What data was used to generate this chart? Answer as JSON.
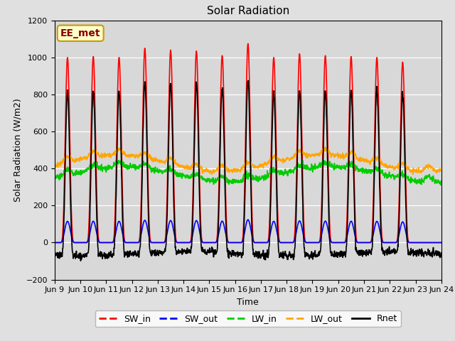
{
  "title": "Solar Radiation",
  "xlabel": "Time",
  "ylabel": "Solar Radiation (W/m2)",
  "ylim": [
    -200,
    1200
  ],
  "yticks": [
    -200,
    0,
    200,
    400,
    600,
    800,
    1000,
    1200
  ],
  "start_day": 9,
  "end_day": 24,
  "n_days": 15,
  "dt_hours": 0.25,
  "SW_in_color": "red",
  "SW_out_color": "blue",
  "LW_in_color": "#00cc00",
  "LW_out_color": "orange",
  "Rnet_color": "black",
  "background_color": "#e0e0e0",
  "plot_bg_color": "#d8d8d8",
  "watermark_text": "EE_met",
  "watermark_bg": "#ffffcc",
  "watermark_border": "#cc9900",
  "legend_labels": [
    "SW_in",
    "SW_out",
    "LW_in",
    "LW_out",
    "Rnet"
  ],
  "line_width": 1.2,
  "tick_label_size": 8,
  "figsize": [
    6.4,
    4.8
  ],
  "dpi": 100
}
